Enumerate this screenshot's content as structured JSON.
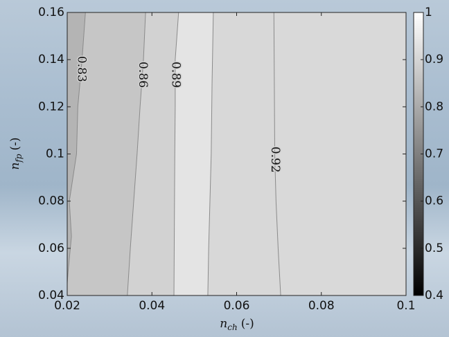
{
  "chart_data": {
    "type": "contour",
    "xlabel": {
      "symbol": "n",
      "subscript": "ch",
      "unit": "(-)"
    },
    "ylabel": {
      "symbol": "n",
      "subscript": "fp",
      "unit": "(-)"
    },
    "xlim": [
      0.02,
      0.1
    ],
    "xticks": [
      0.02,
      0.04,
      0.06,
      0.08,
      0.1
    ],
    "ylim": [
      0.04,
      0.16
    ],
    "yticks": [
      0.04,
      0.06,
      0.08,
      0.1,
      0.12,
      0.14,
      0.16
    ],
    "contours": [
      {
        "level": 0.83,
        "x": [
          0.0243,
          0.0235,
          0.0225,
          0.0222,
          0.0205,
          0.021,
          0.0202,
          0.02,
          0.02
        ],
        "y": [
          0.16,
          0.14,
          0.12,
          0.1,
          0.08,
          0.065,
          0.05,
          0.045,
          0.04
        ]
      },
      {
        "level": 0.86,
        "x": [
          0.0385,
          0.038,
          0.0372,
          0.0365,
          0.0357,
          0.0349,
          0.0342
        ],
        "y": [
          0.16,
          0.14,
          0.12,
          0.1,
          0.08,
          0.06,
          0.04
        ]
      },
      {
        "level": 0.89,
        "x": [
          0.0463,
          0.0455,
          0.0455,
          0.0454,
          0.0453,
          0.0452
        ],
        "y": [
          0.16,
          0.14,
          0.12,
          0.1,
          0.07,
          0.04
        ]
      },
      {
        "x": [
          0.0545,
          0.0542,
          0.054,
          0.0537,
          0.0534,
          0.0532
        ],
        "y": [
          0.16,
          0.13,
          0.1,
          0.08,
          0.06,
          0.04
        ]
      },
      {
        "level": 0.92,
        "x": [
          0.0688,
          0.0689,
          0.069,
          0.0693,
          0.0698,
          0.0704
        ],
        "y": [
          0.16,
          0.13,
          0.1,
          0.08,
          0.06,
          0.04
        ]
      }
    ],
    "band_colors": [
      "#b4b4b4",
      "#c6c6c6",
      "#d2d2d2",
      "#e4e4e4",
      "#d8d8d8",
      "#d9d9d9"
    ],
    "colorbar": {
      "lim": [
        0.4,
        1
      ],
      "ticks": [
        0.4,
        0.5,
        0.6,
        0.7,
        0.8,
        0.9,
        1
      ]
    }
  }
}
